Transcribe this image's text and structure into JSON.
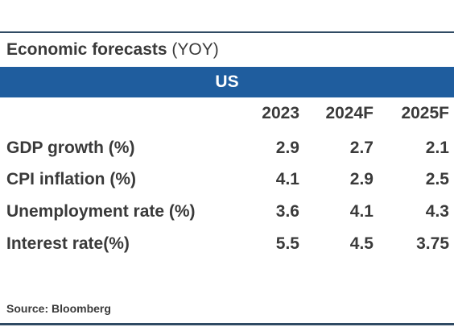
{
  "title": {
    "bold": "Economic forecasts",
    "suffix": " (YOY)"
  },
  "region": "US",
  "years": [
    "2023",
    "2024F",
    "2025F"
  ],
  "rows": [
    {
      "label": "GDP growth (%)",
      "values": [
        "2.9",
        "2.7",
        "2.1"
      ]
    },
    {
      "label": "CPI inflation (%)",
      "values": [
        "4.1",
        "2.9",
        "2.5"
      ]
    },
    {
      "label": "Unemployment rate (%)",
      "values": [
        "3.6",
        "4.1",
        "4.3"
      ]
    },
    {
      "label": "Interest rate(%)",
      "values": [
        "5.5",
        "4.5",
        "3.75"
      ]
    }
  ],
  "source": "Source: Bloomberg",
  "colors": {
    "banner": "#1f5d9e",
    "rule": "#2f4a63",
    "text": "#3a3a3a"
  }
}
